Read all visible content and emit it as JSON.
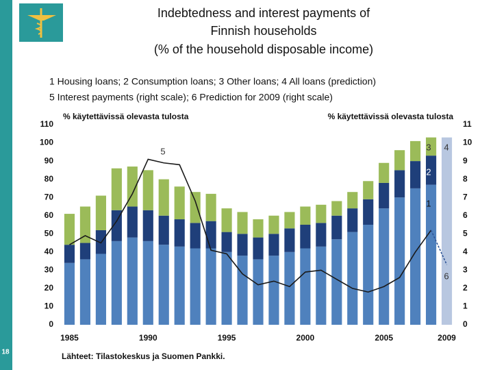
{
  "chart_data": {
    "type": "bar",
    "title": [
      "Indebtedness and interest payments of",
      "Finnish households",
      "(% of the household disposable income)"
    ],
    "legend_text": [
      "1 Housing loans; 2 Consumption loans; 3 Other loans; 4 All loans (prediction)",
      "5 Interest payments (right scale); 6 Prediction for 2009 (right scale)"
    ],
    "y_label": "% käytettävissä olevasta tulosta",
    "y2_label": "% käytettävissä olevasta tulosta",
    "source": "Lähteet: Tilastokeskus ja Suomen Pankki.",
    "page_number": "18",
    "categories": [
      "1985",
      null,
      null,
      null,
      null,
      "1990",
      null,
      null,
      null,
      null,
      "1995",
      null,
      null,
      null,
      null,
      "2000",
      null,
      null,
      null,
      null,
      "2005",
      null,
      null,
      null,
      "2009"
    ],
    "stacked": true,
    "series": [
      {
        "name": "1",
        "color": "#4f81bd",
        "values": [
          34,
          36,
          39,
          46,
          48,
          46,
          44,
          43,
          42,
          42,
          40,
          38,
          36,
          38,
          40,
          42,
          43,
          47,
          51,
          55,
          64,
          70,
          75,
          77,
          null
        ]
      },
      {
        "name": "2",
        "color": "#1f3f7a",
        "values": [
          10,
          9,
          13,
          17,
          17,
          17,
          16,
          15,
          14,
          15,
          11,
          12,
          12,
          12,
          13,
          13,
          13,
          13,
          13,
          14,
          14,
          15,
          15,
          16,
          null
        ]
      },
      {
        "name": "3",
        "color": "#9bbb59",
        "values": [
          17,
          20,
          19,
          23,
          22,
          22,
          20,
          18,
          17,
          15,
          13,
          12,
          10,
          10,
          9,
          10,
          10,
          8,
          9,
          10,
          11,
          11,
          11,
          10,
          null
        ]
      },
      {
        "name": "4",
        "color": "#b8c7e0",
        "values": [
          null,
          null,
          null,
          null,
          null,
          null,
          null,
          null,
          null,
          null,
          null,
          null,
          null,
          null,
          null,
          null,
          null,
          null,
          null,
          null,
          null,
          null,
          null,
          null,
          103
        ]
      },
      {
        "name": "5",
        "color": "#1a1a1a",
        "type": "line",
        "axis": "y2",
        "values": [
          4.4,
          4.9,
          4.5,
          5.7,
          7.2,
          9.1,
          8.9,
          8.8,
          6.8,
          4.1,
          3.9,
          2.8,
          2.2,
          2.4,
          2.1,
          2.9,
          3.0,
          2.5,
          2.0,
          1.8,
          2.1,
          2.6,
          4.0,
          5.2,
          null
        ]
      },
      {
        "name": "6",
        "color": "#2f5597",
        "type": "line",
        "dashed": true,
        "axis": "y2",
        "values": [
          null,
          null,
          null,
          null,
          null,
          null,
          null,
          null,
          null,
          null,
          null,
          null,
          null,
          null,
          null,
          null,
          null,
          null,
          null,
          null,
          null,
          null,
          null,
          5.2,
          3.3
        ]
      }
    ],
    "ylim": [
      0,
      110
    ],
    "yticks": [
      0,
      10,
      20,
      30,
      40,
      50,
      60,
      70,
      80,
      90,
      100,
      110
    ],
    "y2lim": [
      0,
      11
    ],
    "y2ticks": [
      0,
      1,
      2,
      3,
      4,
      5,
      6,
      7,
      8,
      9,
      10,
      11
    ],
    "grid": false
  }
}
